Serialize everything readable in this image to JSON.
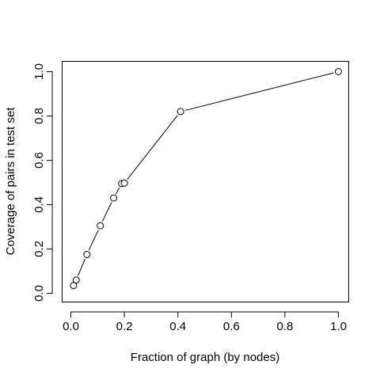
{
  "chart_data": {
    "type": "line",
    "title": "",
    "xlabel": "Fraction of graph (by nodes)",
    "ylabel": "Coverage of pairs in test set",
    "xlim": [
      0,
      1
    ],
    "ylim": [
      0,
      1
    ],
    "x_ticks": [
      0.0,
      0.2,
      0.4,
      0.6,
      0.8,
      1.0
    ],
    "x_tick_labels": [
      "0.0",
      "0.2",
      "0.4",
      "0.6",
      "0.8",
      "1.0"
    ],
    "y_ticks": [
      0.0,
      0.2,
      0.4,
      0.6,
      0.8,
      1.0
    ],
    "y_tick_labels": [
      "0.0",
      "0.2",
      "0.4",
      "0.6",
      "0.8",
      "1.0"
    ],
    "grid": false,
    "line_type": "both",
    "series": [
      {
        "x": [
          0.01,
          0.02,
          0.06,
          0.11,
          0.16,
          0.19,
          0.2,
          0.41,
          1.0
        ],
        "y": [
          0.035,
          0.06,
          0.175,
          0.305,
          0.43,
          0.495,
          0.497,
          0.82,
          1.0
        ]
      }
    ]
  }
}
